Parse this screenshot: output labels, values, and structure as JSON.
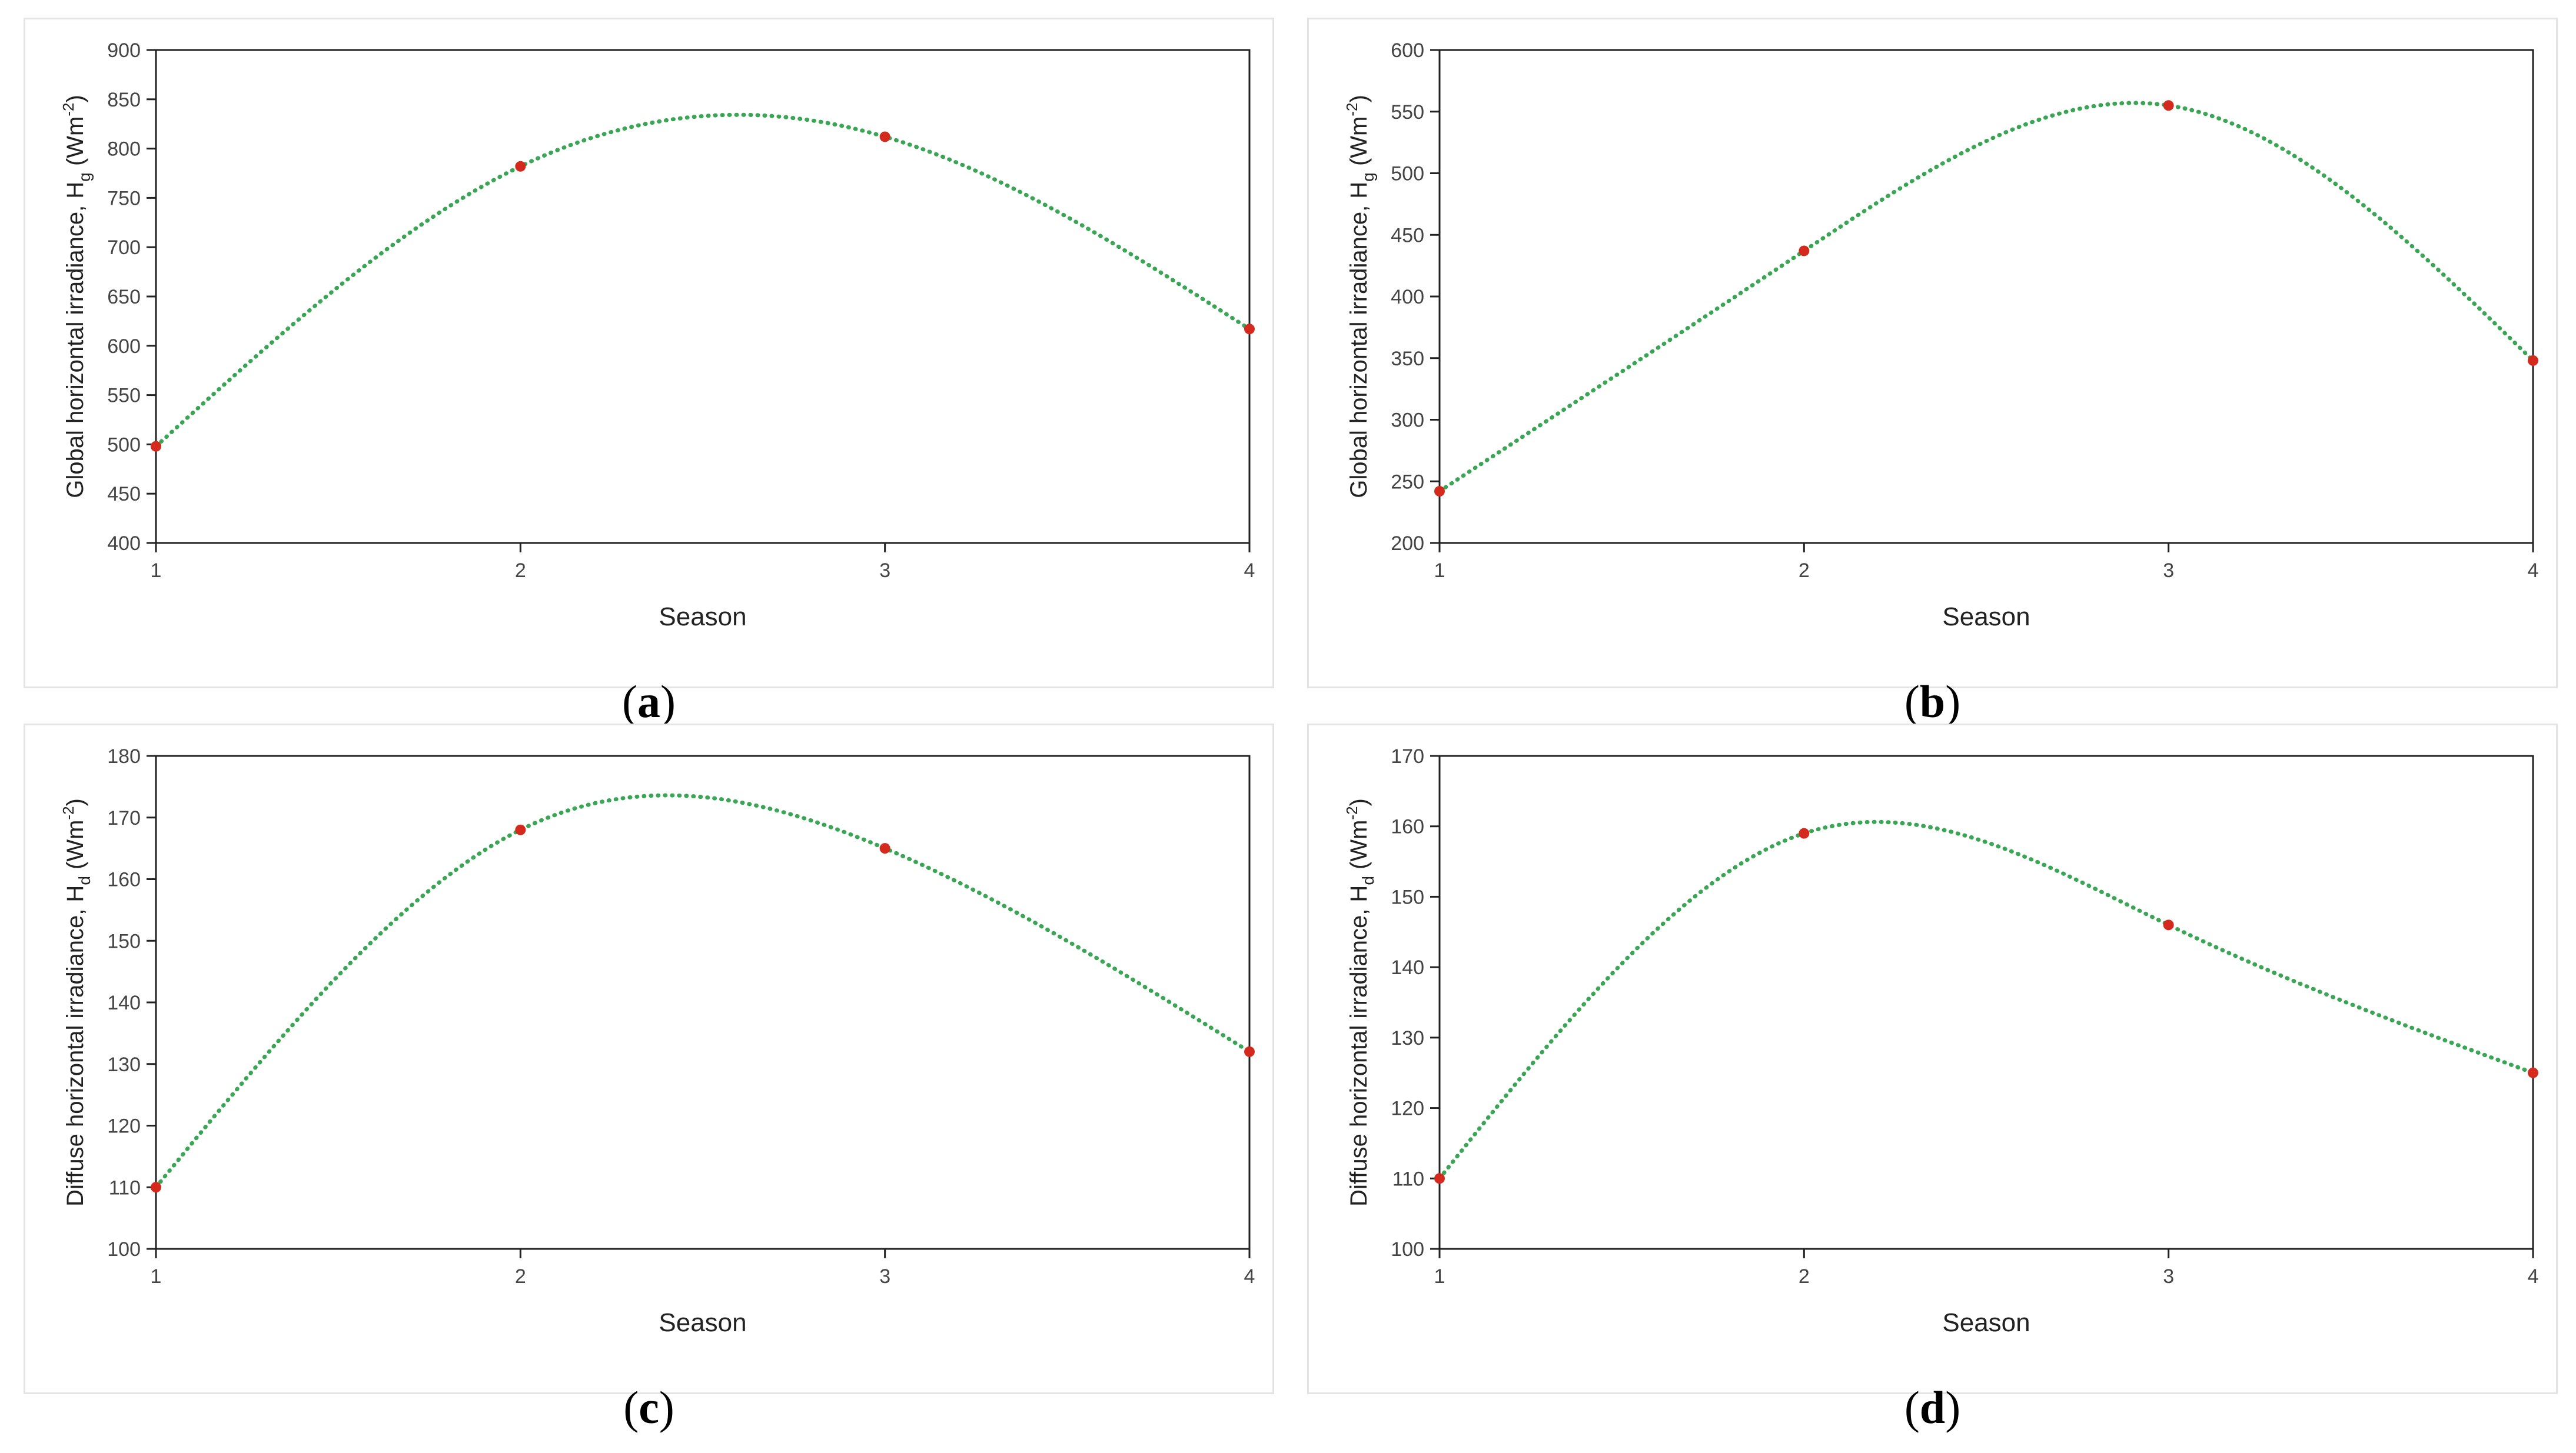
{
  "chart_data": [
    {
      "type": "line",
      "panel_label": "a",
      "x": [
        1,
        2,
        3,
        4
      ],
      "values": [
        498,
        782,
        812,
        617
      ],
      "xlabel": "Season",
      "ylabel_main": "Global horizontal irradiance, H",
      "ylabel_sub": "g",
      "ylabel_unit": " (Wm",
      "ylabel_exp": "-2",
      "ylabel_close": ")",
      "ylim": [
        400,
        900
      ],
      "ystep": 50,
      "xticks": [
        "1",
        "2",
        "3",
        "4"
      ],
      "yticks": [
        "400",
        "450",
        "500",
        "550",
        "600",
        "650",
        "700",
        "750",
        "800",
        "850",
        "900"
      ],
      "line_color": "#3aa655",
      "marker_color": "#d42a1e"
    },
    {
      "type": "line",
      "panel_label": "b",
      "x": [
        1,
        2,
        3,
        4
      ],
      "values": [
        242,
        437,
        555,
        348
      ],
      "xlabel": "Season",
      "ylabel_main": "Global horizontal irradiance, H",
      "ylabel_sub": "g",
      "ylabel_unit": " (Wm",
      "ylabel_exp": "-2",
      "ylabel_close": ")",
      "ylim": [
        200,
        600
      ],
      "ystep": 50,
      "xticks": [
        "1",
        "2",
        "3",
        "4"
      ],
      "yticks": [
        "200",
        "250",
        "300",
        "350",
        "400",
        "450",
        "500",
        "550",
        "600"
      ],
      "line_color": "#3aa655",
      "marker_color": "#d42a1e"
    },
    {
      "type": "line",
      "panel_label": "c",
      "x": [
        1,
        2,
        3,
        4
      ],
      "values": [
        110,
        168,
        165,
        132
      ],
      "xlabel": "Season",
      "ylabel_main": "Diffuse horizontal irradiance, H",
      "ylabel_sub": "d",
      "ylabel_unit": " (Wm",
      "ylabel_exp": "-2",
      "ylabel_close": ")",
      "ylim": [
        100,
        180
      ],
      "ystep": 10,
      "xticks": [
        "1",
        "2",
        "3",
        "4"
      ],
      "yticks": [
        "100",
        "110",
        "120",
        "130",
        "140",
        "150",
        "160",
        "170",
        "180"
      ],
      "line_color": "#3aa655",
      "marker_color": "#d42a1e"
    },
    {
      "type": "line",
      "panel_label": "d",
      "x": [
        1,
        2,
        3,
        4
      ],
      "values": [
        110,
        159,
        146,
        125
      ],
      "xlabel": "Season",
      "ylabel_main": "Diffuse horizontal irradiance, H",
      "ylabel_sub": "d",
      "ylabel_unit": " (Wm",
      "ylabel_exp": "-2",
      "ylabel_close": ")",
      "ylim": [
        100,
        170
      ],
      "ystep": 10,
      "xticks": [
        "1",
        "2",
        "3",
        "4"
      ],
      "yticks": [
        "100",
        "110",
        "120",
        "130",
        "140",
        "150",
        "160",
        "170"
      ],
      "line_color": "#3aa655",
      "marker_color": "#d42a1e"
    }
  ]
}
